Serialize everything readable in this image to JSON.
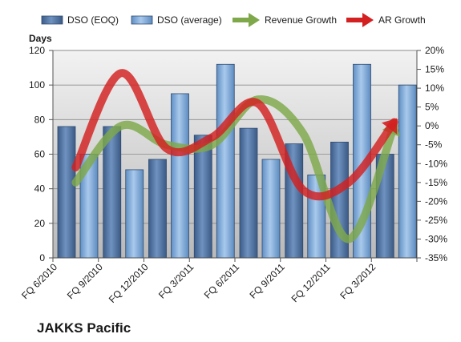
{
  "chart_data": {
    "type": "bar",
    "title": "JAKKS Pacific",
    "categories": [
      "FQ 6/2010",
      "FQ 9/2010",
      "FQ 12/2010",
      "FQ 3/2011",
      "FQ 6/2011",
      "FQ 9/2011",
      "FQ 12/2011",
      "FQ 3/2012"
    ],
    "ylabel": "Days",
    "ylim": [
      0,
      120
    ],
    "yticks": [
      0,
      20,
      40,
      60,
      80,
      100,
      120
    ],
    "y2lim": [
      -35,
      20
    ],
    "y2ticks": [
      -35,
      -30,
      -25,
      -20,
      -15,
      -10,
      -5,
      0,
      5,
      10,
      15,
      20
    ],
    "y2tick_labels": [
      "-35%",
      "-30%",
      "-25%",
      "-20%",
      "-15%",
      "-10%",
      "-5%",
      "0%",
      "5%",
      "10%",
      "15%",
      "20%"
    ],
    "grid": true,
    "legend_position": "top",
    "series": [
      {
        "name": "DSO (EOQ)",
        "kind": "bar",
        "axis": "left",
        "color": "#4a6e9f",
        "values": [
          76,
          76,
          57,
          71,
          75,
          66,
          67,
          60
        ]
      },
      {
        "name": "DSO (average)",
        "kind": "bar",
        "axis": "left",
        "color": "#7fa8d6",
        "values": [
          60,
          51,
          95,
          112,
          57,
          48,
          112,
          100
        ]
      },
      {
        "name": "Revenue Growth",
        "kind": "line",
        "axis": "right",
        "color": "#7ea84a",
        "values": [
          -15,
          0,
          -5,
          -5,
          7,
          -2,
          -30,
          0
        ]
      },
      {
        "name": "AR Growth",
        "kind": "line",
        "axis": "right",
        "color": "#d32020",
        "values": [
          -11,
          14,
          -6,
          -3,
          6,
          -17,
          -15,
          1
        ]
      }
    ]
  }
}
